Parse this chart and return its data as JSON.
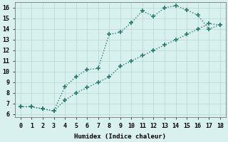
{
  "xlabel": "Humidex (Indice chaleur)",
  "background_color": "#d8f0ee",
  "line_color": "#2a7a6e",
  "xlim": [
    -0.5,
    18.5
  ],
  "ylim": [
    5.7,
    16.5
  ],
  "xticks": [
    0,
    1,
    2,
    3,
    4,
    5,
    6,
    7,
    8,
    9,
    10,
    11,
    12,
    13,
    14,
    15,
    16,
    17,
    18
  ],
  "yticks": [
    6,
    7,
    8,
    9,
    10,
    11,
    12,
    13,
    14,
    15,
    16
  ],
  "curve1_x": [
    0,
    1,
    2,
    3,
    4,
    5,
    6,
    7,
    8,
    9,
    10,
    11,
    12,
    13,
    14,
    15,
    16,
    17,
    18
  ],
  "curve1_y": [
    6.7,
    6.7,
    6.5,
    6.3,
    8.6,
    9.5,
    10.2,
    10.3,
    13.5,
    13.7,
    14.6,
    15.7,
    15.2,
    16.0,
    16.2,
    15.8,
    15.3,
    14.0,
    14.4
  ],
  "curve2_x": [
    0,
    1,
    2,
    3,
    4,
    5,
    6,
    7,
    8,
    9,
    10,
    11,
    12,
    13,
    14,
    15,
    16,
    17,
    18
  ],
  "curve2_y": [
    6.7,
    6.7,
    6.5,
    6.3,
    7.3,
    8.0,
    8.5,
    9.0,
    9.5,
    10.5,
    11.0,
    11.5,
    12.0,
    12.5,
    13.0,
    13.5,
    14.0,
    14.5,
    14.4
  ],
  "grid_color": "#b8dbd8",
  "marker": "+",
  "markersize": 4,
  "markeredgewidth": 1.2,
  "linewidth": 1.0,
  "linestyle": ":",
  "font_family": "monospace",
  "tick_fontsize": 6.0,
  "xlabel_fontsize": 6.5
}
